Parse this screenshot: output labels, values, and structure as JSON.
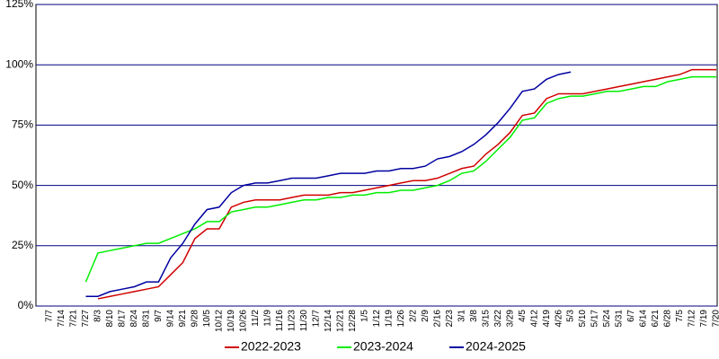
{
  "chart_data": {
    "type": "line",
    "categories": [
      "7/7",
      "7/14",
      "7/21",
      "7/27",
      "8/3",
      "8/10",
      "8/17",
      "8/24",
      "8/31",
      "9/7",
      "9/14",
      "9/21",
      "9/28",
      "10/5",
      "10/12",
      "10/19",
      "10/26",
      "11/2",
      "11/9",
      "11/16",
      "11/23",
      "11/30",
      "12/7",
      "12/14",
      "12/21",
      "12/28",
      "1/5",
      "1/12",
      "1/19",
      "1/26",
      "2/2",
      "2/9",
      "2/16",
      "2/23",
      "3/1",
      "3/8",
      "3/15",
      "3/22",
      "3/29",
      "4/5",
      "4/12",
      "4/19",
      "4/26",
      "5/3",
      "5/10",
      "5/17",
      "5/24",
      "5/31",
      "6/7",
      "6/14",
      "6/21",
      "6/28",
      "7/5",
      "7/12",
      "7/19",
      "7/20"
    ],
    "series": [
      {
        "name": "2022-2023",
        "color": "#d00000",
        "values": [
          null,
          null,
          null,
          null,
          3,
          4,
          5,
          6,
          7,
          8,
          13,
          18,
          28,
          32,
          32,
          41,
          43,
          44,
          44,
          44,
          45,
          46,
          46,
          46,
          47,
          47,
          48,
          49,
          50,
          51,
          52,
          52,
          53,
          55,
          57,
          58,
          63,
          67,
          72,
          79,
          80,
          86,
          88,
          88,
          88,
          89,
          90,
          91,
          92,
          93,
          94,
          95,
          96,
          98,
          98,
          98
        ]
      },
      {
        "name": "2023-2024",
        "color": "#00ee00",
        "values": [
          null,
          null,
          null,
          10,
          22,
          23,
          24,
          25,
          26,
          26,
          28,
          30,
          32,
          35,
          35,
          39,
          40,
          41,
          41,
          42,
          43,
          44,
          44,
          45,
          45,
          46,
          46,
          47,
          47,
          48,
          48,
          49,
          50,
          52,
          55,
          56,
          60,
          65,
          70,
          77,
          78,
          84,
          86,
          87,
          87,
          88,
          89,
          89,
          90,
          91,
          91,
          93,
          94,
          95,
          95,
          95
        ]
      },
      {
        "name": "2024-2025",
        "color": "#0000a0",
        "values": [
          null,
          null,
          null,
          4,
          4,
          6,
          7,
          8,
          10,
          10,
          20,
          26,
          34,
          40,
          41,
          47,
          50,
          51,
          51,
          52,
          53,
          53,
          53,
          54,
          55,
          55,
          55,
          56,
          56,
          57,
          57,
          58,
          61,
          62,
          64,
          67,
          71,
          76,
          82,
          89,
          90,
          94,
          96,
          97,
          null,
          null,
          null,
          null,
          null,
          null,
          null,
          null,
          null,
          null,
          null,
          null
        ]
      }
    ],
    "ylim": [
      0,
      125
    ],
    "yticks": [
      {
        "value": 0,
        "label": "0%"
      },
      {
        "value": 25,
        "label": "25%"
      },
      {
        "value": 50,
        "label": "50%"
      },
      {
        "value": 75,
        "label": "75%"
      },
      {
        "value": 100,
        "label": "100%"
      },
      {
        "value": 125,
        "label": "125%"
      }
    ],
    "grid": true,
    "grid_color": "#000080",
    "legend": "bottom"
  }
}
